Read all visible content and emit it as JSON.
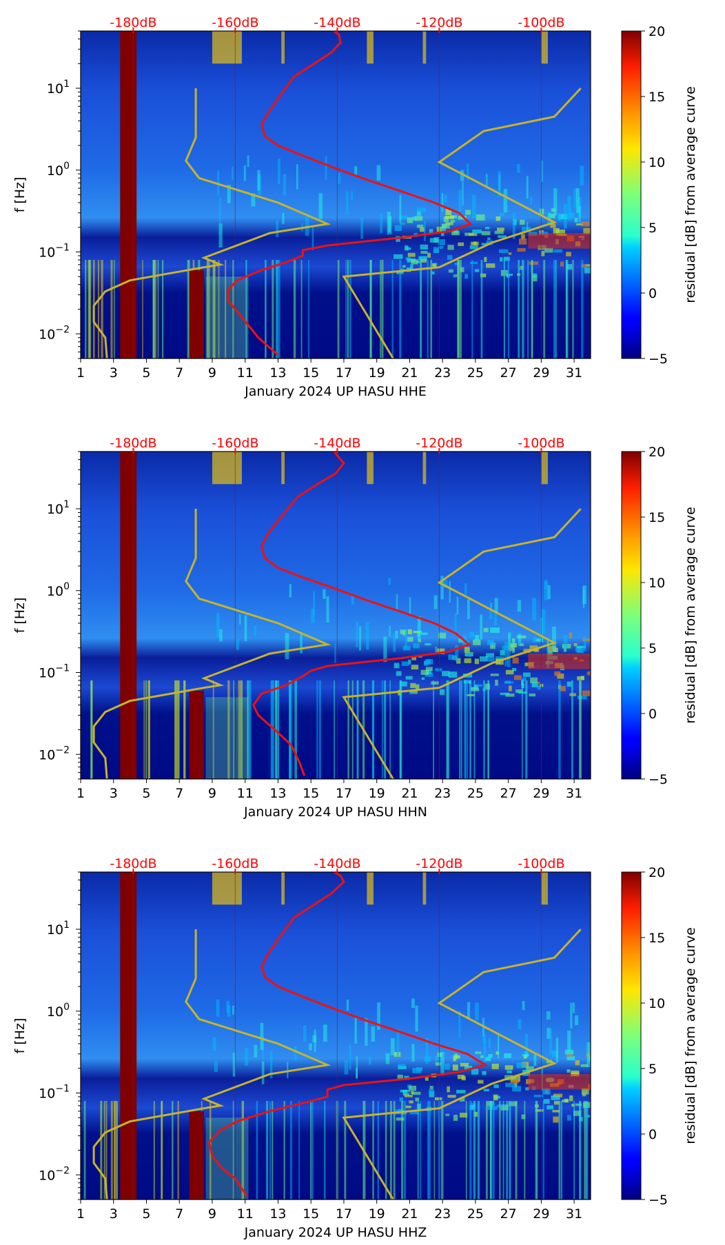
{
  "chart_data": [
    {
      "type": "heatmap",
      "xlabel": "January 2024 UP HASU  HHE",
      "ylabel": "f [Hz]",
      "x_ticks": [
        "1",
        "3",
        "5",
        "7",
        "9",
        "11",
        "13",
        "15",
        "17",
        "19",
        "21",
        "23",
        "25",
        "27",
        "29",
        "31"
      ],
      "xlim": [
        1,
        32
      ],
      "y_scale": "log",
      "ylim": [
        0.005,
        50
      ],
      "y_ticks": [
        {
          "value": 0.01,
          "base": "10",
          "exp": "−2"
        },
        {
          "value": 0.1,
          "base": "10",
          "exp": "−1"
        },
        {
          "value": 1,
          "base": "10",
          "exp": "0"
        },
        {
          "value": 10,
          "base": "10",
          "exp": "1"
        }
      ],
      "top_db_labels": [
        {
          "x": 4.2,
          "label": "-180dB"
        },
        {
          "x": 10.4,
          "label": "-160dB"
        },
        {
          "x": 16.6,
          "label": "-140dB"
        },
        {
          "x": 22.8,
          "label": "-120dB"
        },
        {
          "x": 29.0,
          "label": "-100dB"
        }
      ],
      "colorbar": {
        "label": "residual [dB] from average curve",
        "min": -5,
        "max": 20,
        "ticks": [
          -5,
          0,
          5,
          10,
          15,
          20
        ],
        "tick_labels": [
          "−5",
          "0",
          "5",
          "10",
          "15",
          "20"
        ]
      },
      "bright_columns": [
        {
          "x0": 3.4,
          "x1": 4.4
        },
        {
          "x0": 7.6,
          "x1": 8.5
        }
      ],
      "red_curve": [
        [
          16.4,
          50
        ],
        [
          16.7,
          45
        ],
        [
          16.8,
          36
        ],
        [
          16.2,
          27
        ],
        [
          15.2,
          20
        ],
        [
          14.0,
          14
        ],
        [
          13.1,
          8
        ],
        [
          12.4,
          5
        ],
        [
          12.0,
          3.6
        ],
        [
          12.2,
          2.6
        ],
        [
          13.0,
          2.0
        ],
        [
          14.5,
          1.5
        ],
        [
          16.5,
          1.05
        ],
        [
          18.5,
          0.75
        ],
        [
          20.5,
          0.55
        ],
        [
          22.5,
          0.4
        ],
        [
          24.0,
          0.3
        ],
        [
          24.7,
          0.22
        ],
        [
          23.5,
          0.18
        ],
        [
          20.5,
          0.15
        ],
        [
          16.0,
          0.12
        ],
        [
          14.5,
          0.105
        ],
        [
          14.5,
          0.09
        ],
        [
          13.5,
          0.075
        ],
        [
          12.0,
          0.06
        ],
        [
          10.5,
          0.045
        ],
        [
          10.0,
          0.035
        ],
        [
          10.0,
          0.025
        ],
        [
          10.8,
          0.016
        ],
        [
          11.8,
          0.009
        ],
        [
          13.0,
          0.0055
        ]
      ],
      "yellow_curve_left": [
        [
          8.0,
          10
        ],
        [
          8.0,
          2.5
        ],
        [
          7.4,
          1.3
        ],
        [
          8.2,
          0.8
        ],
        [
          13.0,
          0.4
        ],
        [
          16.0,
          0.22
        ],
        [
          12.5,
          0.17
        ],
        [
          8.5,
          0.085
        ],
        [
          9.5,
          0.07
        ],
        [
          8.5,
          0.065
        ],
        [
          4.0,
          0.045
        ],
        [
          2.5,
          0.033
        ],
        [
          1.8,
          0.022
        ],
        [
          1.8,
          0.014
        ],
        [
          2.5,
          0.009
        ],
        [
          2.6,
          0.005
        ]
      ],
      "yellow_curve_right": [
        [
          31.4,
          10
        ],
        [
          29.8,
          4.5
        ],
        [
          25.5,
          3.0
        ],
        [
          22.8,
          1.25
        ],
        [
          29.8,
          0.23
        ],
        [
          26.0,
          0.13
        ],
        [
          22.8,
          0.065
        ],
        [
          17.0,
          0.05
        ],
        [
          20.0,
          0.005
        ]
      ]
    },
    {
      "type": "heatmap",
      "xlabel": "January 2024 UP HASU  HHN",
      "ylabel": "f [Hz]",
      "x_ticks": [
        "1",
        "3",
        "5",
        "7",
        "9",
        "11",
        "13",
        "15",
        "17",
        "19",
        "21",
        "23",
        "25",
        "27",
        "29",
        "31"
      ],
      "xlim": [
        1,
        32
      ],
      "y_scale": "log",
      "ylim": [
        0.005,
        50
      ],
      "y_ticks": [
        {
          "value": 0.01,
          "base": "10",
          "exp": "−2"
        },
        {
          "value": 0.1,
          "base": "10",
          "exp": "−1"
        },
        {
          "value": 1,
          "base": "10",
          "exp": "0"
        },
        {
          "value": 10,
          "base": "10",
          "exp": "1"
        }
      ],
      "top_db_labels": [
        {
          "x": 4.2,
          "label": "-180dB"
        },
        {
          "x": 10.4,
          "label": "-160dB"
        },
        {
          "x": 16.6,
          "label": "-140dB"
        },
        {
          "x": 22.8,
          "label": "-120dB"
        },
        {
          "x": 29.0,
          "label": "-100dB"
        }
      ],
      "colorbar": {
        "label": "residual [dB] from average curve",
        "min": -5,
        "max": 20,
        "ticks": [
          -5,
          0,
          5,
          10,
          15,
          20
        ],
        "tick_labels": [
          "−5",
          "0",
          "5",
          "10",
          "15",
          "20"
        ]
      },
      "bright_columns": [
        {
          "x0": 3.4,
          "x1": 4.4
        },
        {
          "x0": 7.6,
          "x1": 8.5
        }
      ],
      "red_curve": [
        [
          16.4,
          50
        ],
        [
          17.0,
          36
        ],
        [
          16.5,
          27
        ],
        [
          15.4,
          20
        ],
        [
          14.2,
          14
        ],
        [
          13.2,
          8
        ],
        [
          12.4,
          5
        ],
        [
          12.0,
          3.5
        ],
        [
          12.2,
          2.5
        ],
        [
          13.0,
          1.9
        ],
        [
          14.5,
          1.45
        ],
        [
          16.5,
          1.05
        ],
        [
          18.5,
          0.75
        ],
        [
          20.5,
          0.55
        ],
        [
          22.5,
          0.4
        ],
        [
          23.8,
          0.3
        ],
        [
          24.6,
          0.22
        ],
        [
          23.4,
          0.18
        ],
        [
          20.5,
          0.15
        ],
        [
          16.0,
          0.12
        ],
        [
          15.0,
          0.105
        ],
        [
          14.5,
          0.09
        ],
        [
          13.5,
          0.07
        ],
        [
          12.0,
          0.055
        ],
        [
          11.5,
          0.04
        ],
        [
          11.8,
          0.03
        ],
        [
          12.8,
          0.02
        ],
        [
          13.8,
          0.013
        ],
        [
          14.3,
          0.008
        ],
        [
          14.6,
          0.0055
        ]
      ],
      "yellow_curve_left": [
        [
          8.0,
          10
        ],
        [
          8.0,
          2.5
        ],
        [
          7.4,
          1.3
        ],
        [
          8.2,
          0.8
        ],
        [
          13.0,
          0.4
        ],
        [
          16.0,
          0.22
        ],
        [
          12.5,
          0.17
        ],
        [
          8.5,
          0.085
        ],
        [
          9.5,
          0.07
        ],
        [
          8.5,
          0.065
        ],
        [
          4.0,
          0.045
        ],
        [
          2.5,
          0.033
        ],
        [
          1.8,
          0.022
        ],
        [
          1.8,
          0.014
        ],
        [
          2.5,
          0.009
        ],
        [
          2.6,
          0.005
        ]
      ],
      "yellow_curve_right": [
        [
          31.4,
          10
        ],
        [
          29.8,
          4.5
        ],
        [
          25.5,
          3.0
        ],
        [
          22.8,
          1.25
        ],
        [
          29.8,
          0.23
        ],
        [
          26.0,
          0.13
        ],
        [
          22.8,
          0.065
        ],
        [
          17.0,
          0.05
        ],
        [
          20.0,
          0.005
        ]
      ]
    },
    {
      "type": "heatmap",
      "xlabel": "January 2024 UP HASU  HHZ",
      "ylabel": "f [Hz]",
      "x_ticks": [
        "1",
        "3",
        "5",
        "7",
        "9",
        "11",
        "13",
        "15",
        "17",
        "19",
        "21",
        "23",
        "25",
        "27",
        "29",
        "31"
      ],
      "xlim": [
        1,
        32
      ],
      "y_scale": "log",
      "ylim": [
        0.005,
        50
      ],
      "y_ticks": [
        {
          "value": 0.01,
          "base": "10",
          "exp": "−2"
        },
        {
          "value": 0.1,
          "base": "10",
          "exp": "−1"
        },
        {
          "value": 1,
          "base": "10",
          "exp": "0"
        },
        {
          "value": 10,
          "base": "10",
          "exp": "1"
        }
      ],
      "top_db_labels": [
        {
          "x": 4.2,
          "label": "-180dB"
        },
        {
          "x": 10.4,
          "label": "-160dB"
        },
        {
          "x": 16.6,
          "label": "-140dB"
        },
        {
          "x": 22.8,
          "label": "-120dB"
        },
        {
          "x": 29.0,
          "label": "-100dB"
        }
      ],
      "colorbar": {
        "label": "residual [dB] from average curve",
        "min": -5,
        "max": 20,
        "ticks": [
          -5,
          0,
          5,
          10,
          15,
          20
        ],
        "tick_labels": [
          "−5",
          "0",
          "5",
          "10",
          "15",
          "20"
        ]
      },
      "bright_columns": [
        {
          "x0": 3.4,
          "x1": 4.4
        },
        {
          "x0": 7.6,
          "x1": 8.5
        }
      ],
      "red_curve": [
        [
          16.4,
          50
        ],
        [
          16.8,
          45
        ],
        [
          17.0,
          38
        ],
        [
          16.2,
          27
        ],
        [
          15.2,
          20
        ],
        [
          14.0,
          14
        ],
        [
          13.1,
          8
        ],
        [
          12.4,
          5
        ],
        [
          12.0,
          3.5
        ],
        [
          12.2,
          2.6
        ],
        [
          13.0,
          2.0
        ],
        [
          14.5,
          1.5
        ],
        [
          16.5,
          1.05
        ],
        [
          18.5,
          0.75
        ],
        [
          20.5,
          0.55
        ],
        [
          22.5,
          0.4
        ],
        [
          24.5,
          0.3
        ],
        [
          25.6,
          0.22
        ],
        [
          24.0,
          0.18
        ],
        [
          21.0,
          0.15
        ],
        [
          17.0,
          0.125
        ],
        [
          16.0,
          0.11
        ],
        [
          16.0,
          0.09
        ],
        [
          14.5,
          0.075
        ],
        [
          12.5,
          0.06
        ],
        [
          10.5,
          0.045
        ],
        [
          9.5,
          0.035
        ],
        [
          8.8,
          0.025
        ],
        [
          9.0,
          0.017
        ],
        [
          9.6,
          0.012
        ],
        [
          10.4,
          0.009
        ],
        [
          11.1,
          0.0055
        ]
      ],
      "yellow_curve_left": [
        [
          8.0,
          10
        ],
        [
          8.0,
          2.5
        ],
        [
          7.4,
          1.3
        ],
        [
          8.2,
          0.8
        ],
        [
          13.0,
          0.4
        ],
        [
          16.0,
          0.22
        ],
        [
          12.5,
          0.17
        ],
        [
          8.5,
          0.085
        ],
        [
          9.5,
          0.07
        ],
        [
          8.5,
          0.065
        ],
        [
          4.0,
          0.045
        ],
        [
          2.5,
          0.033
        ],
        [
          1.8,
          0.022
        ],
        [
          1.8,
          0.014
        ],
        [
          2.5,
          0.009
        ],
        [
          2.6,
          0.005
        ]
      ],
      "yellow_curve_right": [
        [
          31.4,
          10
        ],
        [
          29.8,
          4.5
        ],
        [
          25.5,
          3.0
        ],
        [
          22.8,
          1.25
        ],
        [
          29.8,
          0.23
        ],
        [
          26.0,
          0.13
        ],
        [
          22.8,
          0.065
        ],
        [
          17.0,
          0.05
        ],
        [
          20.0,
          0.005
        ]
      ]
    }
  ]
}
